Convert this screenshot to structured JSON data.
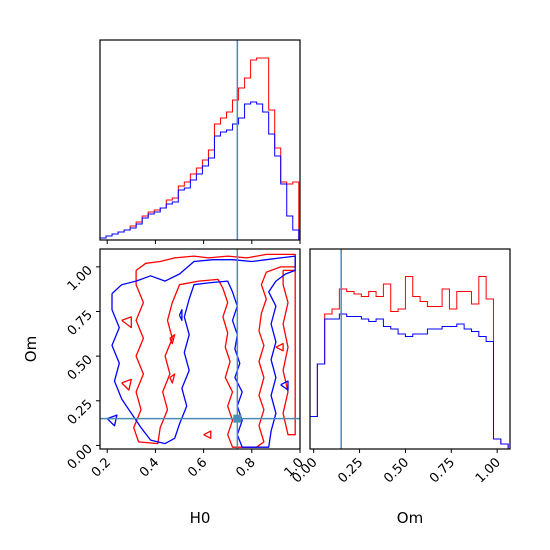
{
  "chart_data": {
    "type": "corner",
    "parameters": [
      "H0",
      "Om"
    ],
    "truth": {
      "H0": 0.74,
      "Om": 0.15
    },
    "truth_color": "#4c8bb5",
    "series": [
      {
        "color": "#ff0000"
      },
      {
        "color": "#0000ff"
      }
    ],
    "panels": [
      {
        "id": "hist-H0",
        "type": "histogram",
        "param": "H0",
        "xlim": [
          0.17,
          1.0
        ],
        "xticks": [
          0.2,
          0.4,
          0.6,
          0.8,
          1.0
        ],
        "bin_edges": [
          0.17,
          0.195,
          0.22,
          0.245,
          0.27,
          0.295,
          0.32,
          0.345,
          0.37,
          0.395,
          0.42,
          0.445,
          0.47,
          0.495,
          0.52,
          0.545,
          0.57,
          0.595,
          0.62,
          0.645,
          0.67,
          0.695,
          0.72,
          0.745,
          0.77,
          0.795,
          0.82,
          0.845,
          0.87,
          0.895,
          0.92,
          0.945,
          0.97,
          0.995
        ],
        "counts": [
          [
            1,
            2,
            3,
            4,
            5,
            7,
            9,
            12,
            14,
            15,
            16,
            20,
            21,
            27,
            29,
            33,
            36,
            40,
            45,
            58,
            61,
            64,
            70,
            76,
            81,
            90,
            91,
            91,
            65,
            46,
            29,
            28,
            29
          ],
          [
            1,
            2,
            3,
            4,
            5,
            6,
            8,
            11,
            13,
            14,
            16,
            18,
            19,
            25,
            26,
            30,
            33,
            37,
            41,
            52,
            54,
            55,
            58,
            61,
            68,
            69,
            68,
            64,
            53,
            42,
            28,
            12,
            5
          ]
        ],
        "ylim": [
          0,
          100
        ]
      },
      {
        "id": "hist-Om",
        "type": "histogram",
        "param": "Om",
        "xlim": [
          -0.02,
          1.07
        ],
        "xticks": [
          0.0,
          0.25,
          0.5,
          0.75,
          1.0
        ],
        "bin_edges": [
          -0.02,
          0.02,
          0.06,
          0.1,
          0.14,
          0.18,
          0.22,
          0.26,
          0.3,
          0.34,
          0.38,
          0.42,
          0.46,
          0.5,
          0.54,
          0.58,
          0.62,
          0.66,
          0.7,
          0.74,
          0.78,
          0.82,
          0.86,
          0.9,
          0.94,
          0.98,
          1.02,
          1.06
        ],
        "counts": [
          [
            13,
            34,
            54,
            56,
            64,
            63,
            62,
            61,
            63,
            61,
            66,
            55,
            56,
            69,
            61,
            59,
            57,
            57,
            64,
            56,
            63,
            63,
            58,
            69,
            60,
            4,
            2
          ],
          [
            13,
            34,
            52,
            52,
            54,
            53,
            53,
            52,
            51,
            52,
            49,
            48,
            46,
            45,
            46,
            46,
            48,
            48,
            49,
            49,
            50,
            48,
            47,
            45,
            43,
            4,
            2
          ]
        ],
        "ylim": [
          0,
          80
        ]
      },
      {
        "id": "contour-H0-Om",
        "type": "contour",
        "x": "H0",
        "y": "Om",
        "xlim": [
          0.17,
          1.0
        ],
        "ylim": [
          -0.02,
          1.1
        ],
        "xticks": [
          0.2,
          0.4,
          0.6,
          0.8,
          1.0
        ],
        "yticks": [
          0.0,
          0.25,
          0.5,
          0.75,
          1.0
        ],
        "contours": [
          [
            [
              [
                0.32,
                0.98
              ],
              [
                0.36,
                1.02
              ],
              [
                0.42,
                1.03
              ],
              [
                0.48,
                1.05
              ],
              [
                0.56,
                1.06
              ],
              [
                0.62,
                1.05
              ],
              [
                0.7,
                1.06
              ],
              [
                0.78,
                1.05
              ],
              [
                0.86,
                1.07
              ],
              [
                0.98,
                1.07
              ],
              [
                0.98,
                1.0
              ],
              [
                0.92,
                1.0
              ],
              [
                0.86,
                0.97
              ],
              [
                0.84,
                0.9
              ],
              [
                0.86,
                0.82
              ],
              [
                0.84,
                0.74
              ],
              [
                0.83,
                0.64
              ],
              [
                0.85,
                0.56
              ],
              [
                0.83,
                0.47
              ],
              [
                0.85,
                0.38
              ],
              [
                0.83,
                0.28
              ],
              [
                0.85,
                0.2
              ],
              [
                0.83,
                0.11
              ],
              [
                0.85,
                0.02
              ],
              [
                0.82,
                -0.01
              ],
              [
                0.72,
                -0.01
              ],
              [
                0.7,
                0.06
              ],
              [
                0.72,
                0.14
              ],
              [
                0.7,
                0.22
              ],
              [
                0.72,
                0.3
              ],
              [
                0.69,
                0.38
              ],
              [
                0.71,
                0.47
              ],
              [
                0.69,
                0.55
              ],
              [
                0.7,
                0.63
              ],
              [
                0.68,
                0.72
              ],
              [
                0.7,
                0.8
              ],
              [
                0.68,
                0.88
              ],
              [
                0.66,
                0.93
              ],
              [
                0.58,
                0.92
              ],
              [
                0.5,
                0.9
              ],
              [
                0.47,
                0.8
              ],
              [
                0.45,
                0.7
              ],
              [
                0.47,
                0.6
              ],
              [
                0.44,
                0.5
              ],
              [
                0.46,
                0.4
              ],
              [
                0.43,
                0.3
              ],
              [
                0.45,
                0.2
              ],
              [
                0.42,
                0.1
              ],
              [
                0.41,
                0.01
              ],
              [
                0.33,
                0.02
              ],
              [
                0.31,
                0.1
              ],
              [
                0.34,
                0.2
              ],
              [
                0.32,
                0.3
              ],
              [
                0.35,
                0.4
              ],
              [
                0.32,
                0.5
              ],
              [
                0.35,
                0.6
              ],
              [
                0.32,
                0.7
              ],
              [
                0.35,
                0.8
              ],
              [
                0.32,
                0.9
              ],
              [
                0.32,
                0.98
              ]
            ],
            [
              [
                0.93,
                0.98
              ],
              [
                0.98,
                0.98
              ],
              [
                0.98,
                0.06
              ],
              [
                0.95,
                0.06
              ],
              [
                0.93,
                0.18
              ],
              [
                0.95,
                0.3
              ],
              [
                0.93,
                0.42
              ],
              [
                0.95,
                0.55
              ],
              [
                0.93,
                0.68
              ],
              [
                0.95,
                0.8
              ],
              [
                0.93,
                0.9
              ],
              [
                0.93,
                0.98
              ]
            ],
            [
              [
                0.26,
                0.7
              ],
              [
                0.3,
                0.72
              ],
              [
                0.3,
                0.66
              ],
              [
                0.26,
                0.7
              ]
            ],
            [
              [
                0.26,
                0.35
              ],
              [
                0.3,
                0.37
              ],
              [
                0.29,
                0.31
              ],
              [
                0.26,
                0.35
              ]
            ],
            [
              [
                0.46,
                0.6
              ],
              [
                0.48,
                0.62
              ],
              [
                0.47,
                0.57
              ],
              [
                0.46,
                0.6
              ]
            ],
            [
              [
                0.46,
                0.38
              ],
              [
                0.48,
                0.4
              ],
              [
                0.47,
                0.35
              ],
              [
                0.46,
                0.38
              ]
            ],
            [
              [
                0.6,
                0.06
              ],
              [
                0.63,
                0.08
              ],
              [
                0.63,
                0.04
              ],
              [
                0.6,
                0.06
              ]
            ],
            [
              [
                0.9,
                0.55
              ],
              [
                0.93,
                0.57
              ],
              [
                0.93,
                0.53
              ],
              [
                0.9,
                0.55
              ]
            ]
          ],
          [
            [
              [
                0.22,
                0.85
              ],
              [
                0.26,
                0.9
              ],
              [
                0.32,
                0.92
              ],
              [
                0.38,
                0.95
              ],
              [
                0.44,
                0.92
              ],
              [
                0.5,
                0.96
              ],
              [
                0.56,
                1.03
              ],
              [
                0.64,
                1.04
              ],
              [
                0.72,
                1.04
              ],
              [
                0.8,
                1.03
              ],
              [
                0.86,
                1.04
              ],
              [
                0.92,
                1.05
              ],
              [
                0.98,
                1.06
              ],
              [
                0.98,
                0.98
              ],
              [
                0.94,
                0.96
              ],
              [
                0.9,
                0.92
              ],
              [
                0.87,
                0.86
              ],
              [
                0.9,
                0.78
              ],
              [
                0.88,
                0.68
              ],
              [
                0.9,
                0.58
              ],
              [
                0.88,
                0.48
              ],
              [
                0.9,
                0.38
              ],
              [
                0.88,
                0.28
              ],
              [
                0.9,
                0.18
              ],
              [
                0.88,
                0.08
              ],
              [
                0.87,
                -0.01
              ],
              [
                0.76,
                -0.01
              ],
              [
                0.74,
                0.06
              ],
              [
                0.76,
                0.14
              ],
              [
                0.74,
                0.22
              ],
              [
                0.76,
                0.3
              ],
              [
                0.73,
                0.38
              ],
              [
                0.75,
                0.46
              ],
              [
                0.73,
                0.54
              ],
              [
                0.74,
                0.62
              ],
              [
                0.72,
                0.7
              ],
              [
                0.74,
                0.78
              ],
              [
                0.72,
                0.86
              ],
              [
                0.7,
                0.92
              ],
              [
                0.62,
                0.91
              ],
              [
                0.56,
                0.9
              ],
              [
                0.54,
                0.82
              ],
              [
                0.52,
                0.72
              ],
              [
                0.54,
                0.62
              ],
              [
                0.52,
                0.52
              ],
              [
                0.54,
                0.42
              ],
              [
                0.51,
                0.32
              ],
              [
                0.53,
                0.22
              ],
              [
                0.5,
                0.12
              ],
              [
                0.48,
                0.04
              ],
              [
                0.44,
                0.01
              ],
              [
                0.38,
                0.03
              ],
              [
                0.34,
                0.1
              ],
              [
                0.3,
                0.18
              ],
              [
                0.26,
                0.26
              ],
              [
                0.23,
                0.36
              ],
              [
                0.25,
                0.46
              ],
              [
                0.22,
                0.56
              ],
              [
                0.25,
                0.66
              ],
              [
                0.22,
                0.76
              ],
              [
                0.22,
                0.85
              ]
            ],
            [
              [
                0.2,
                0.15
              ],
              [
                0.24,
                0.17
              ],
              [
                0.23,
                0.11
              ],
              [
                0.2,
                0.15
              ]
            ],
            [
              [
                0.5,
                0.73
              ],
              [
                0.51,
                0.76
              ],
              [
                0.51,
                0.7
              ],
              [
                0.5,
                0.73
              ]
            ],
            [
              [
                0.92,
                0.34
              ],
              [
                0.95,
                0.36
              ],
              [
                0.95,
                0.31
              ],
              [
                0.92,
                0.34
              ]
            ]
          ]
        ]
      }
    ]
  }
}
